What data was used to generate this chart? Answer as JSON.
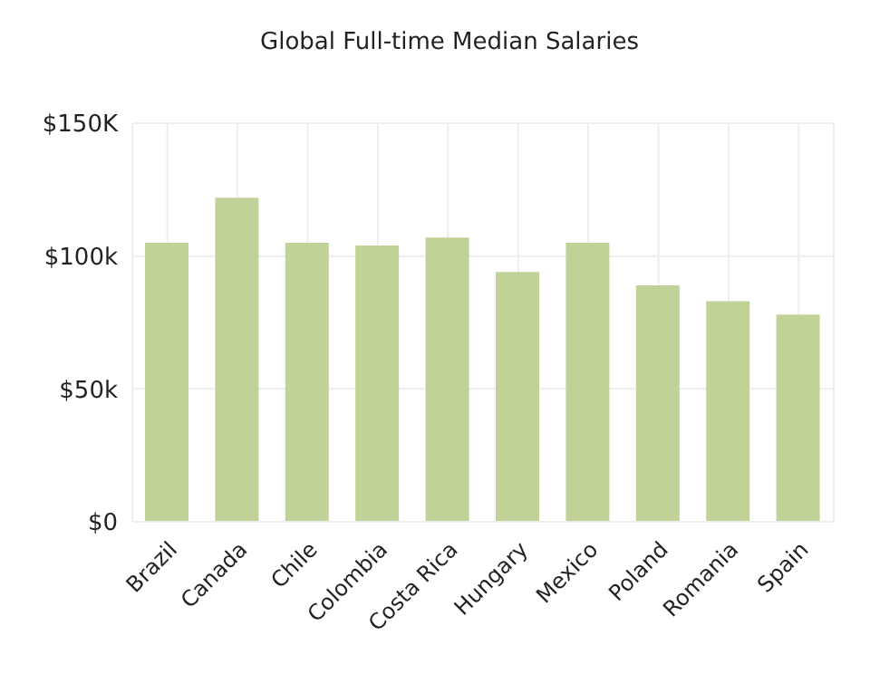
{
  "chart_data": {
    "type": "bar",
    "title": "Global Full-time Median Salaries",
    "categories": [
      "Brazil",
      "Canada",
      "Chile",
      "Colombia",
      "Costa Rica",
      "Hungary",
      "Mexico",
      "Poland",
      "Romania",
      "Spain"
    ],
    "values": [
      105,
      122,
      105,
      104,
      107,
      94,
      105,
      89,
      83,
      78
    ],
    "color": "#c1d298",
    "ylim": [
      0,
      150
    ],
    "yticks": [
      {
        "value": 0,
        "label": "$0"
      },
      {
        "value": 50,
        "label": "$50k"
      },
      {
        "value": 100,
        "label": "$100k"
      },
      {
        "value": 150,
        "label": "$150K"
      }
    ],
    "grid": true
  }
}
